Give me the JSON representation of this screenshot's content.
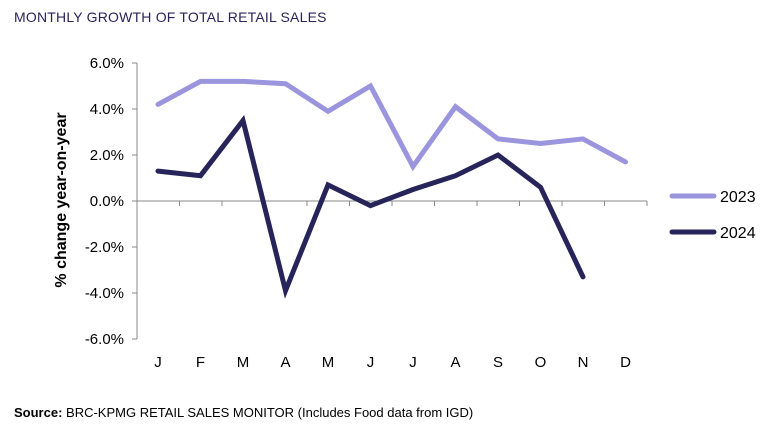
{
  "title": "MONTHLY GROWTH OF TOTAL RETAIL SALES",
  "source": {
    "label": "Source:",
    "text": " BRC-KPMG RETAIL SALES MONITOR (Includes Food data from IGD)"
  },
  "chart_data": {
    "type": "line",
    "categories": [
      "J",
      "F",
      "M",
      "A",
      "M",
      "J",
      "J",
      "A",
      "S",
      "O",
      "N",
      "D"
    ],
    "ylabel": "% change year-on-year",
    "ylim": [
      -6,
      6
    ],
    "yticks": [
      "6.0%",
      "4.0%",
      "2.0%",
      "0.0%",
      "-2.0%",
      "-4.0%",
      "-6.0%"
    ],
    "legend_position": "right",
    "series": [
      {
        "name": "2023",
        "color": "#9a95dd",
        "values": [
          4.2,
          5.2,
          5.2,
          5.1,
          3.9,
          5.0,
          1.5,
          4.1,
          2.7,
          2.5,
          2.7,
          1.7
        ]
      },
      {
        "name": "2024",
        "color": "#27245a",
        "values": [
          1.3,
          1.1,
          3.5,
          -3.9,
          0.7,
          -0.2,
          0.5,
          1.1,
          2.0,
          0.6,
          -3.3,
          null
        ]
      }
    ]
  }
}
